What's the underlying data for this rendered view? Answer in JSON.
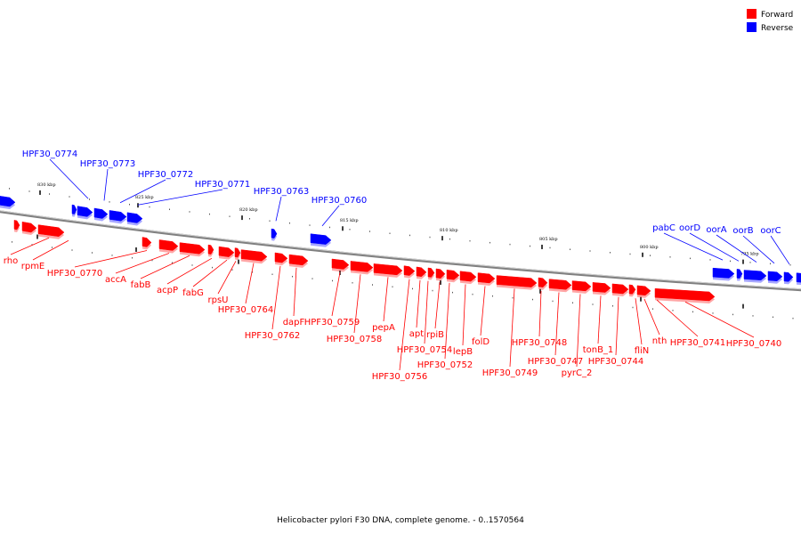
{
  "caption": "Helicobacter pylori F30 DNA, complete genome. - 0..1570564",
  "legend": [
    {
      "label": "Forward",
      "color": "#ff0000"
    },
    {
      "label": "Reverse",
      "color": "#0000ff"
    }
  ],
  "colors": {
    "forward": "#ff0000",
    "reverse": "#0000ff",
    "backbone": "#808080"
  },
  "scale": {
    "ticks": [
      "830 kbp",
      "825 kbp",
      "820 kbp",
      "815 kbp",
      "810 kbp",
      "805 kbp",
      "800 kbp",
      "795 kbp"
    ]
  },
  "forward_genes": [
    "rho",
    "rpmE",
    "HPF30_0770",
    "accA",
    "fabB",
    "acpP",
    "fabG",
    "rpsU",
    "HPF30_0764",
    "HPF30_0762",
    "dapF",
    "HPF30_0759",
    "HPF30_0758",
    "pepA",
    "HPF30_0756",
    "apt",
    "HPF30_0754",
    "rpiB",
    "HPF30_0752",
    "lepB",
    "folD",
    "HPF30_0749",
    "HPF30_0748",
    "HPF30_0747",
    "pyrC_2",
    "tonB_1",
    "HPF30_0744",
    "fliN",
    "nth",
    "HPF30_0741",
    "HPF30_0740"
  ],
  "reverse_genes": [
    "HPF30_0774",
    "HPF30_0773",
    "HPF30_0772",
    "HPF30_0771",
    "HPF30_0763",
    "HPF30_0760",
    "pabC",
    "oorD",
    "oorA",
    "oorB",
    "oorC"
  ]
}
